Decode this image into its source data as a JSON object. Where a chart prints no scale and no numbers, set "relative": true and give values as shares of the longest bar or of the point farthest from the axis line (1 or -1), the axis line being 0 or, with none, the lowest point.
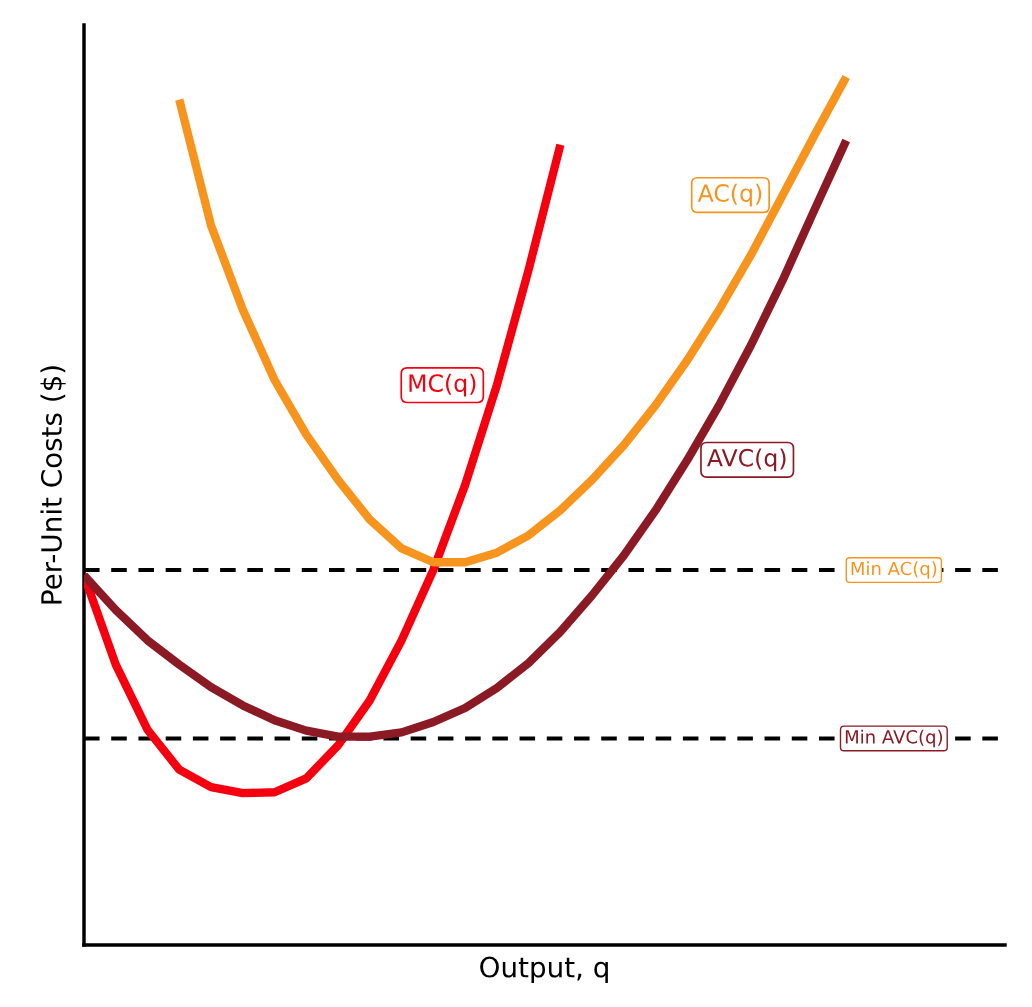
{
  "chart_data": {
    "type": "line",
    "relative": true,
    "xlabel": "Output, q",
    "ylabel": "Per-Unit Costs ($)",
    "categories": [
      null,
      null,
      null,
      null,
      null,
      null,
      null,
      null,
      null,
      null,
      null,
      null,
      null,
      null,
      null,
      null,
      null,
      null,
      null,
      null,
      null,
      null,
      null,
      null,
      null,
      null,
      null,
      null,
      null,
      null
    ],
    "series": [
      {
        "name": "MC(q)",
        "color": "#f5000f",
        "values": [
          0.426,
          0.323,
          0.248,
          0.202,
          0.182,
          0.175,
          0.176,
          0.192,
          0.23,
          0.282,
          0.351,
          0.432,
          0.53,
          0.645,
          0.778,
          0.922,
          null,
          null,
          null,
          null,
          null,
          null,
          null,
          null,
          null,
          null,
          null,
          null,
          null,
          null
        ]
      },
      {
        "name": "AC(q)",
        "color": "#f7941d",
        "values": [
          null,
          null,
          null,
          0.974,
          0.829,
          0.732,
          0.651,
          0.588,
          0.536,
          0.49,
          0.457,
          0.441,
          0.441,
          0.452,
          0.472,
          0.501,
          0.536,
          0.576,
          0.622,
          0.674,
          0.732,
          0.795,
          0.864,
          0.933,
          1.0,
          null,
          null,
          null,
          null,
          null
        ]
      },
      {
        "name": "AVC(q)",
        "color": "#8b1a24",
        "values": [
          0.426,
          0.386,
          0.351,
          0.323,
          0.297,
          0.276,
          0.259,
          0.247,
          0.24,
          0.24,
          0.245,
          0.257,
          0.273,
          0.296,
          0.325,
          0.361,
          0.403,
          0.449,
          0.501,
          0.559,
          0.622,
          0.691,
          0.766,
          0.847,
          0.927,
          null,
          null,
          null,
          null,
          null
        ]
      }
    ],
    "ref_lines": [
      {
        "axis": "y",
        "value": 0.432,
        "label": "Min AC(q)",
        "color": "#000000",
        "line_style": "dashed"
      },
      {
        "axis": "y",
        "value": 0.238,
        "label": "Min AVC(q)",
        "color": "#000000",
        "line_style": "dashed"
      }
    ],
    "legend": false,
    "tick_labels": false,
    "line_style": "solid",
    "marker": "none"
  }
}
